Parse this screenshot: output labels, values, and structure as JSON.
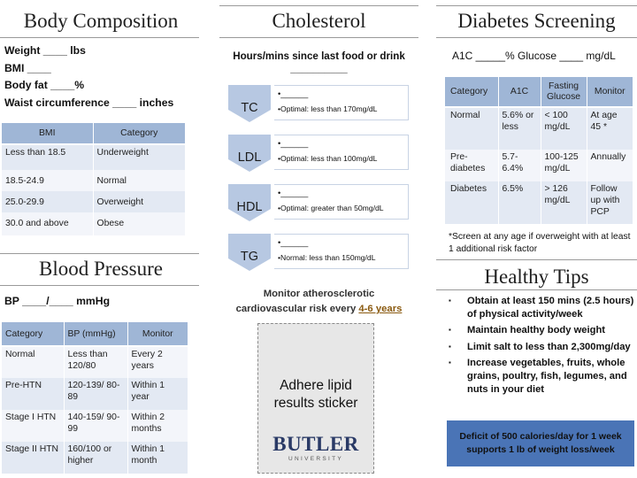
{
  "body_composition": {
    "title": "Body Composition",
    "fields": [
      "Weight ____ lbs",
      "BMI ____",
      "Body fat  ____%",
      "Waist circumference ____ inches"
    ],
    "table": {
      "headers": [
        "BMI",
        "Category"
      ],
      "rows": [
        [
          "Less than 18.5",
          "Underweight"
        ],
        [
          "18.5-24.9",
          "Normal"
        ],
        [
          "25.0-29.9",
          "Overweight"
        ],
        [
          "30.0 and above",
          "Obese"
        ]
      ]
    }
  },
  "blood_pressure": {
    "title": "Blood Pressure",
    "field": "BP ____/____ mmHg",
    "table": {
      "headers": [
        "Category",
        "BP (mmHg)",
        "Monitor"
      ],
      "rows": [
        [
          "Normal",
          "Less than 120/80",
          "Every 2 years"
        ],
        [
          "Pre-HTN",
          "120-139/ 80-89",
          "Within 1 year"
        ],
        [
          "Stage I HTN",
          "140-159/ 90-99",
          "Within 2 months"
        ],
        [
          "Stage II HTN",
          "160/100 or higher",
          "Within 1 month"
        ]
      ]
    }
  },
  "cholesterol": {
    "title": "Cholesterol",
    "question": "Hours/mins since last food or drink",
    "question_blank": "__________",
    "items": [
      {
        "label": "TC",
        "blank": "•______",
        "note": "•Optimal: less than 170mg/dL"
      },
      {
        "label": "LDL",
        "blank": "•______",
        "note": "•Optimal: less than 100mg/dL"
      },
      {
        "label": "HDL",
        "blank": "•______",
        "note": "•Optimal: greater than 50mg/dL"
      },
      {
        "label": "TG",
        "blank": "•______",
        "note": "•Normal: less than 150mg/dL"
      }
    ],
    "monitor_line1": "Monitor atherosclerotic",
    "monitor_line2": "cardiovascular risk every ",
    "monitor_years": "4-6 years",
    "sticker_line1": "Adhere lipid",
    "sticker_line2": "results sticker",
    "logo_name": "BUTLER",
    "logo_sub": "UNIVERSITY"
  },
  "diabetes": {
    "title": "Diabetes Screening",
    "field": "A1C _____%  Glucose ____ mg/dL",
    "table": {
      "headers": [
        "Category",
        "A1C",
        "Fasting Glucose",
        "Monitor"
      ],
      "rows": [
        [
          "Normal",
          "5.6% or less",
          "< 100 mg/dL",
          "At age 45 *"
        ],
        [
          "Pre-diabetes",
          "5.7-6.4%",
          "100-125 mg/dL",
          "Annually"
        ],
        [
          "Diabetes",
          "6.5%",
          "> 126 mg/dL",
          "Follow up with PCP"
        ]
      ]
    },
    "footnote": "*Screen at any age if overweight with at least 1 additional risk factor"
  },
  "healthy_tips": {
    "title": "Healthy Tips",
    "tips": [
      "Obtain at least 150 mins (2.5 hours) of physical activity/week",
      "Maintain healthy body weight",
      "Limit salt to less than 2,300mg/day",
      "Increase vegetables, fruits, whole grains, poultry, fish, legumes, and nuts in your diet"
    ],
    "deficit_line1": "Deficit of 500 calories/day for 1 week",
    "deficit_line2": "supports 1 lb of weight loss/week"
  },
  "colors": {
    "table_header": "#9fb6d6",
    "row_alt": "#e3e9f3",
    "chevron_fill": "#b7c8e2",
    "deficit_box": "#4a74b6",
    "logo": "#2a3a66"
  }
}
